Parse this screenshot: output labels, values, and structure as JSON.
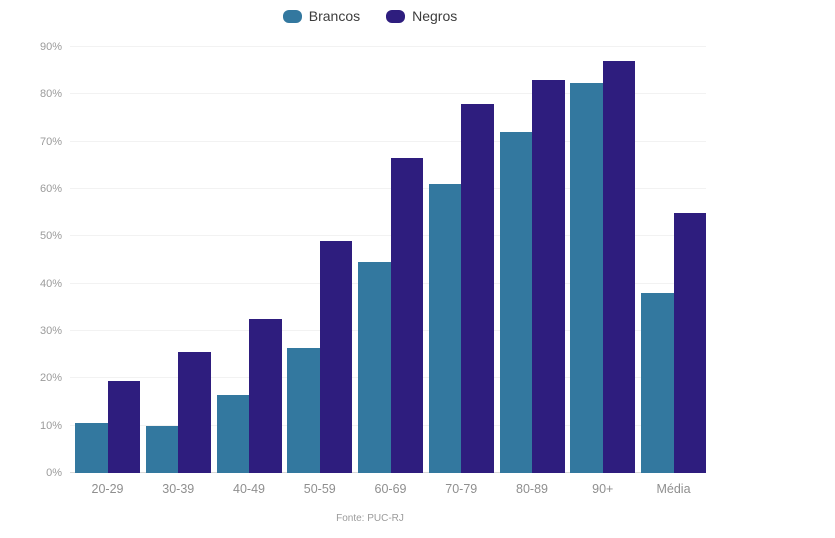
{
  "legend": {
    "items": [
      {
        "label": "Brancos",
        "color": "#33789f"
      },
      {
        "label": "Negros",
        "color": "#2e1d7e"
      }
    ]
  },
  "footer": {
    "source": "Fonte: PUC-RJ"
  },
  "chart_data": {
    "type": "bar",
    "title": "",
    "xlabel": "",
    "ylabel": "",
    "categories": [
      "20-29",
      "30-39",
      "40-49",
      "50-59",
      "60-69",
      "70-79",
      "80-89",
      "90+",
      "Média"
    ],
    "series": [
      {
        "name": "Brancos",
        "color": "#33789f",
        "values": [
          10.5,
          10,
          16.5,
          26.5,
          44.5,
          61,
          72,
          82.5,
          38
        ]
      },
      {
        "name": "Negros",
        "color": "#2e1d7e",
        "values": [
          19.5,
          25.5,
          32.5,
          49,
          66.5,
          78,
          83,
          87,
          55
        ]
      }
    ],
    "ylim": [
      0,
      90
    ],
    "yticks": [
      0,
      10,
      20,
      30,
      40,
      50,
      60,
      70,
      80,
      90
    ],
    "ytick_suffix": "%",
    "grid": true,
    "legend_position": "top",
    "source_note": "Fonte: PUC-RJ"
  }
}
